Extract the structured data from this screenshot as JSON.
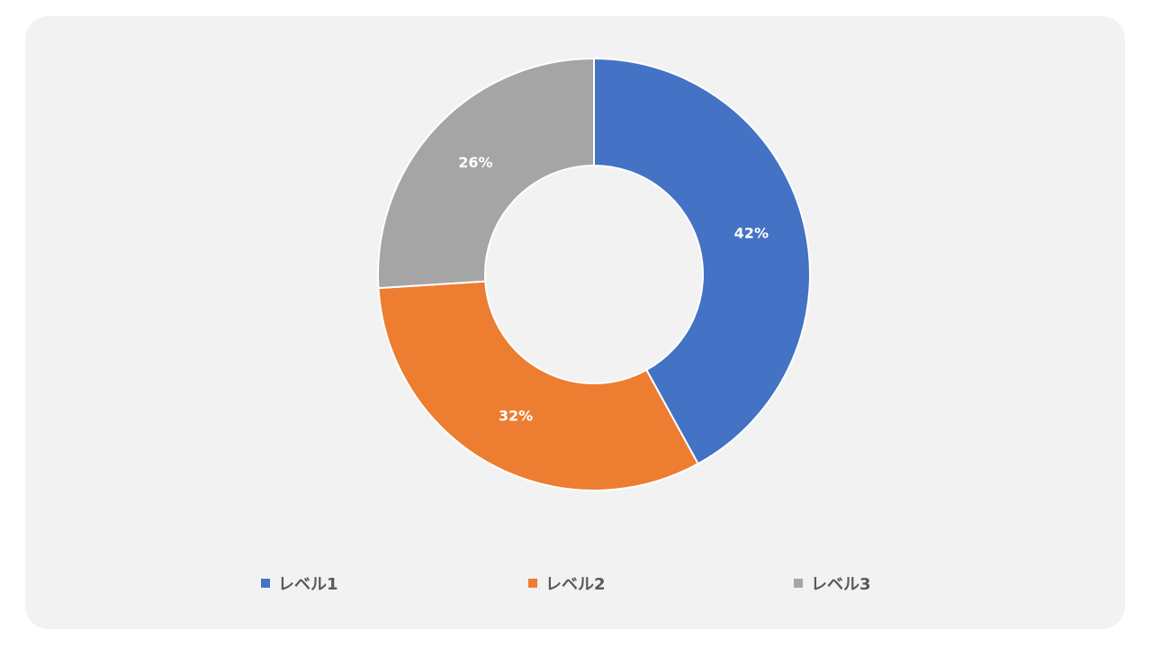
{
  "chart_data": {
    "type": "pie",
    "variant": "donut",
    "title": "",
    "categories": [
      "レベル1",
      "レベル2",
      "レベル3"
    ],
    "values": [
      42,
      32,
      26
    ],
    "data_labels": [
      "42%",
      "32%",
      "26%"
    ],
    "colors": [
      "#4472c4",
      "#ed7d31",
      "#a5a5a5"
    ],
    "legend_position": "bottom"
  }
}
